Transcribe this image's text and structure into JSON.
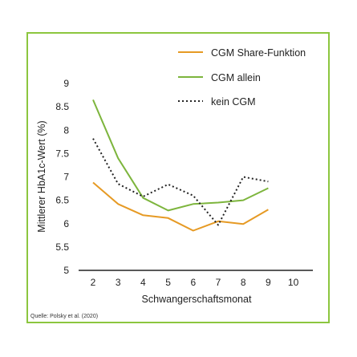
{
  "chart_data": {
    "type": "line",
    "xlabel": "Schwangerschaftsmonat",
    "ylabel": "Mittlerer HbA1c-Wert (%)",
    "xlim": [
      2,
      10
    ],
    "ylim": [
      5,
      9
    ],
    "x_ticks": [
      2,
      3,
      4,
      5,
      6,
      7,
      8,
      9,
      10
    ],
    "y_ticks": [
      5,
      5.5,
      6,
      6.5,
      7,
      7.5,
      8,
      8.5,
      9
    ],
    "grid": false,
    "legend_position": "top-right",
    "series": [
      {
        "name": "CGM Share-Funktion",
        "color": "#e69a24",
        "style": "solid",
        "x": [
          2,
          3,
          4,
          5,
          6,
          7,
          8,
          9
        ],
        "y": [
          6.88,
          6.42,
          6.18,
          6.12,
          5.85,
          6.05,
          5.99,
          6.3
        ]
      },
      {
        "name": "CGM allein",
        "color": "#7db53d",
        "style": "solid",
        "x": [
          2,
          3,
          4,
          5,
          6,
          7,
          8,
          9
        ],
        "y": [
          8.65,
          7.4,
          6.55,
          6.28,
          6.42,
          6.45,
          6.5,
          6.76
        ]
      },
      {
        "name": "kein CGM",
        "color": "#222222",
        "style": "dotted",
        "x": [
          2,
          3,
          4,
          5,
          6,
          7,
          8,
          9
        ],
        "y": [
          7.82,
          6.85,
          6.58,
          6.84,
          6.6,
          5.97,
          7.0,
          6.9
        ]
      }
    ]
  },
  "source_text": "Quelle: Polsky et al. (2020)"
}
